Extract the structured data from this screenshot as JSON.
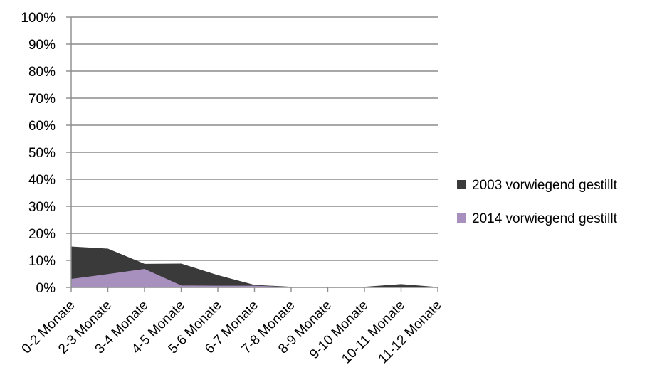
{
  "chart_data": {
    "type": "area",
    "categories": [
      "0-2 Monate",
      "2-3 Monate",
      "3-4 Monate",
      "4-5 Monate",
      "5-6 Monate",
      "6-7 Monate",
      "7-8 Monate",
      "8-9 Monate",
      "9-10 Monate",
      "10-11 Monate",
      "11-12 Monate"
    ],
    "series": [
      {
        "name": "2003 vorwiegend gestillt",
        "color": "#3a3a3a",
        "values": [
          15.0,
          14.2,
          8.6,
          8.7,
          4.4,
          0.8,
          0.1,
          0.1,
          0.1,
          1.1,
          0.0
        ]
      },
      {
        "name": "2014 vorwiegend gestillt",
        "color": "#a78fbe",
        "values": [
          3.0,
          4.8,
          6.7,
          0.6,
          0.5,
          0.5,
          0.0,
          0.0,
          0.0,
          0.0,
          0.0
        ]
      }
    ],
    "y_ticks": [
      "0%",
      "10%",
      "20%",
      "30%",
      "40%",
      "50%",
      "60%",
      "70%",
      "80%",
      "90%",
      "100%"
    ],
    "ylim": [
      0,
      100
    ],
    "grid": true,
    "legend_position": "right",
    "title": "",
    "xlabel": "",
    "ylabel": ""
  }
}
